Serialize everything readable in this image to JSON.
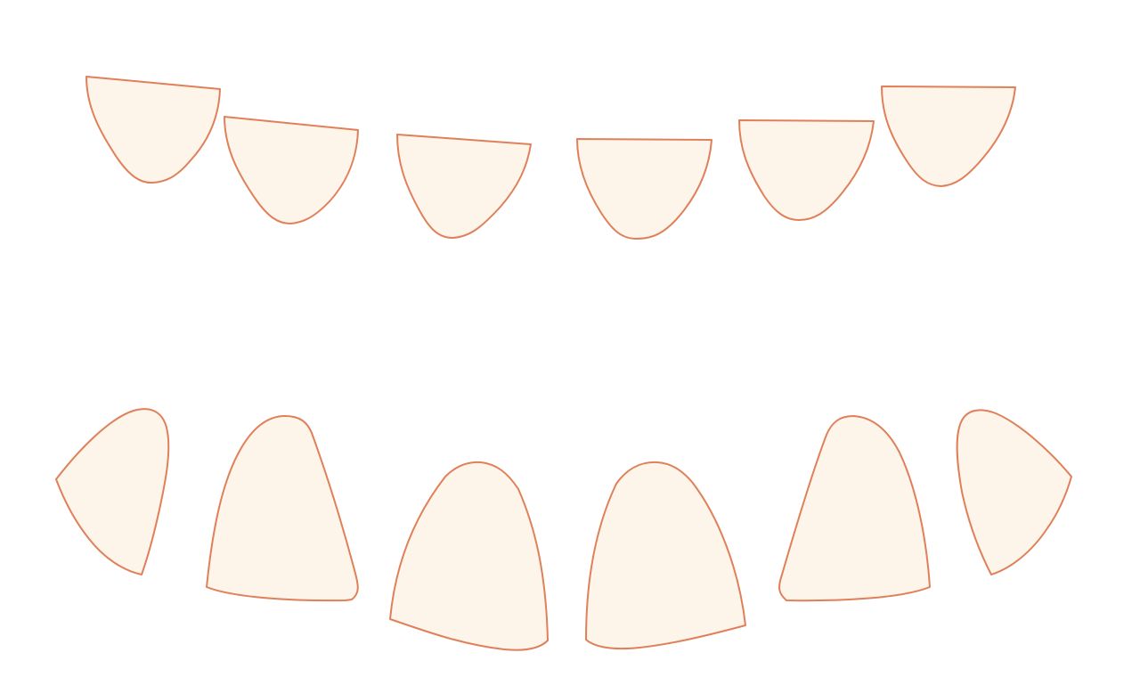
{
  "colors": {
    "background": "#ffffff",
    "tooth_fill": "#fdf4ea",
    "tooth_stroke": "#e0805a"
  },
  "upper_row": {
    "teeth": [
      {
        "id": "upper-1"
      },
      {
        "id": "upper-2"
      },
      {
        "id": "upper-3"
      },
      {
        "id": "upper-4"
      },
      {
        "id": "upper-5"
      },
      {
        "id": "upper-6"
      }
    ]
  },
  "lower_row": {
    "teeth": [
      {
        "id": "lower-1"
      },
      {
        "id": "lower-2"
      },
      {
        "id": "lower-3"
      },
      {
        "id": "lower-4"
      },
      {
        "id": "lower-5"
      },
      {
        "id": "lower-6"
      }
    ]
  }
}
